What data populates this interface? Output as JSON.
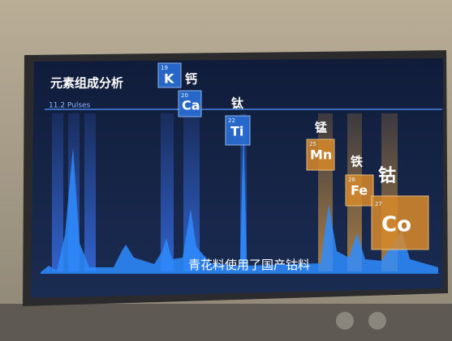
{
  "screen": {
    "title": "元素组成分析",
    "scale_label": "11.2 Pulses",
    "caption": "青花料使用了国产钴料"
  },
  "elements": [
    {
      "number": 19,
      "symbol": "K"
    },
    {
      "number": 20,
      "symbol": "Ca",
      "name": "钙"
    },
    {
      "number": 22,
      "symbol": "Ti",
      "name": "钛"
    },
    {
      "number": 25,
      "symbol": "Mn",
      "name": "锰"
    },
    {
      "number": 26,
      "symbol": "Fe",
      "name": "铁"
    },
    {
      "number": 27,
      "symbol": "Co",
      "name": "钴"
    }
  ]
}
